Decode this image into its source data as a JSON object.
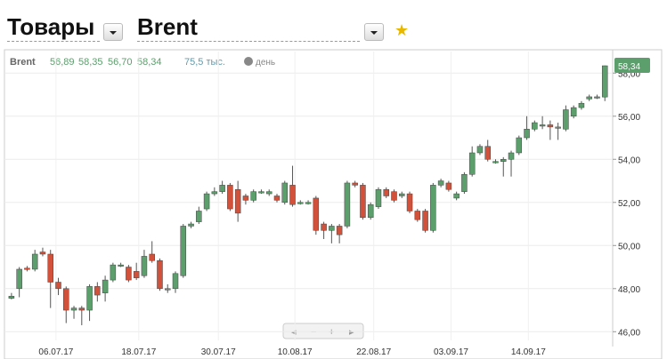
{
  "header": {
    "section": "Товары",
    "instrument": "Brent",
    "legend": {
      "name": "Brent",
      "open": "56,89",
      "high": "58,35",
      "low": "56,70",
      "close": "58,34",
      "volume": "75,5 тыс.",
      "period": "день"
    },
    "last_price_badge": "58,34"
  },
  "chart_data": {
    "type": "candlestick",
    "up_color": "#5c9e6c",
    "down_color": "#d2513a",
    "xlim": [
      -0.9,
      77
    ],
    "ylim": [
      45.6,
      59
    ],
    "yticks": [
      {
        "value": 46,
        "label": "46,00"
      },
      {
        "value": 48,
        "label": "48,00"
      },
      {
        "value": 50,
        "label": "50,00"
      },
      {
        "value": 52,
        "label": "52,00"
      },
      {
        "value": 54,
        "label": "54,00"
      },
      {
        "value": 56,
        "label": "56,00"
      },
      {
        "value": 58,
        "label": "58,00"
      }
    ],
    "xticks": [
      {
        "value": 5.7,
        "label": "06.07.17"
      },
      {
        "value": 16.3,
        "label": "18.07.17"
      },
      {
        "value": 26.5,
        "label": "30.07.17"
      },
      {
        "value": 36.3,
        "label": "10.08.17"
      },
      {
        "value": 46.4,
        "label": "22.08.17"
      },
      {
        "value": 56.3,
        "label": "03.09.17"
      },
      {
        "value": 66.2,
        "label": "14.09.17"
      }
    ],
    "x": [
      0,
      1,
      2,
      3,
      4,
      5,
      6,
      7,
      8,
      9,
      10,
      11,
      12,
      13,
      14,
      15,
      16,
      17,
      18,
      19,
      20,
      21,
      22,
      23,
      24,
      25,
      26,
      27,
      28,
      29,
      30,
      31,
      32,
      33,
      34,
      35,
      36,
      37,
      38,
      39,
      40,
      41,
      42,
      43,
      44,
      45,
      46,
      47,
      48,
      49,
      50,
      51,
      52,
      53,
      54,
      55,
      56,
      57,
      58,
      59,
      60,
      61,
      62,
      63,
      64,
      65,
      66,
      67,
      68,
      69,
      70,
      71,
      72,
      73,
      74,
      75,
      76
    ],
    "open": [
      47.55,
      48.0,
      48.95,
      48.9,
      49.7,
      49.6,
      48.3,
      48.0,
      47.0,
      47.1,
      47.0,
      48.1,
      47.8,
      48.4,
      49.1,
      49.0,
      48.8,
      48.6,
      49.6,
      49.3,
      48.0,
      48.0,
      48.6,
      50.9,
      51.1,
      51.7,
      52.4,
      52.5,
      52.8,
      52.6,
      52.3,
      52.1,
      52.5,
      52.4,
      52.3,
      52.0,
      52.8,
      52.0,
      52.0,
      52.2,
      51.0,
      50.7,
      50.9,
      50.9,
      52.9,
      52.8,
      51.3,
      51.8,
      52.6,
      52.5,
      52.3,
      52.4,
      51.6,
      51.6,
      50.7,
      52.8,
      52.9,
      52.2,
      52.5,
      53.3,
      54.3,
      54.6,
      53.9,
      53.9,
      54.0,
      54.3,
      55.0,
      55.4,
      55.6,
      55.6,
      55.5,
      55.4,
      56.0,
      56.4,
      56.8,
      56.9,
      56.89
    ],
    "high": [
      47.8,
      49.0,
      49.05,
      49.8,
      49.9,
      49.8,
      48.5,
      48.1,
      47.2,
      47.2,
      48.2,
      48.3,
      48.6,
      49.2,
      49.2,
      49.1,
      49.2,
      49.8,
      50.2,
      49.4,
      48.2,
      48.8,
      51.0,
      51.1,
      51.8,
      52.5,
      52.7,
      53.0,
      52.9,
      53.0,
      52.4,
      52.6,
      52.6,
      52.6,
      52.4,
      53.0,
      53.7,
      52.1,
      52.1,
      52.3,
      51.1,
      51.0,
      51.0,
      53.0,
      53.0,
      52.9,
      52.0,
      52.7,
      52.7,
      52.6,
      52.5,
      52.5,
      51.7,
      51.7,
      52.9,
      53.1,
      53.0,
      52.5,
      53.4,
      54.6,
      54.7,
      54.9,
      54.0,
      54.1,
      54.4,
      55.1,
      56.0,
      55.8,
      56.0,
      55.8,
      55.7,
      56.5,
      56.5,
      56.7,
      57.0,
      57.0,
      58.35
    ],
    "low": [
      47.5,
      47.6,
      48.8,
      48.8,
      49.5,
      47.1,
      47.7,
      46.4,
      46.6,
      46.3,
      46.5,
      47.4,
      47.4,
      48.3,
      49.0,
      48.3,
      48.4,
      48.5,
      49.2,
      47.9,
      47.8,
      47.8,
      48.5,
      50.8,
      51.0,
      51.6,
      52.3,
      52.4,
      51.6,
      51.1,
      51.9,
      52.0,
      52.4,
      52.3,
      52.0,
      51.9,
      51.8,
      51.9,
      51.9,
      50.5,
      50.3,
      50.1,
      50.1,
      50.8,
      52.7,
      51.2,
      51.2,
      51.7,
      52.2,
      52.0,
      52.2,
      51.5,
      51.1,
      50.6,
      50.6,
      52.7,
      52.5,
      52.1,
      52.4,
      53.2,
      54.2,
      53.9,
      53.8,
      53.2,
      53.2,
      54.2,
      54.9,
      55.3,
      55.4,
      54.9,
      54.9,
      55.3,
      55.9,
      56.3,
      56.7,
      56.8,
      56.7
    ],
    "close": [
      47.65,
      48.9,
      48.9,
      49.6,
      49.6,
      48.3,
      48.0,
      47.0,
      47.1,
      47.0,
      48.1,
      47.7,
      48.4,
      49.1,
      49.1,
      48.4,
      48.5,
      49.5,
      49.3,
      48.0,
      48.0,
      48.7,
      50.9,
      51.0,
      51.6,
      52.4,
      52.5,
      52.8,
      51.7,
      51.5,
      52.1,
      52.5,
      52.5,
      52.5,
      52.1,
      52.9,
      51.9,
      52.0,
      52.0,
      50.7,
      50.7,
      50.9,
      50.5,
      52.9,
      52.8,
      51.3,
      51.9,
      52.6,
      52.3,
      52.1,
      52.4,
      51.6,
      51.2,
      50.7,
      52.8,
      53.0,
      52.6,
      52.4,
      53.3,
      54.3,
      54.6,
      54.0,
      53.9,
      54.0,
      54.3,
      55.0,
      55.4,
      55.7,
      55.6,
      55.5,
      55.5,
      56.3,
      56.4,
      56.6,
      56.9,
      56.9,
      58.34
    ]
  }
}
